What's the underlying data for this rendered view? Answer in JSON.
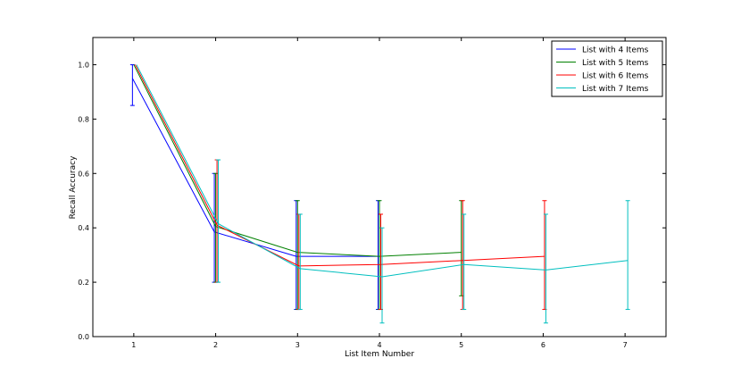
{
  "chart_data": {
    "type": "line",
    "title": "",
    "xlabel": "List Item Number",
    "ylabel": "Recall Accuracy",
    "xlim": [
      0.5,
      7.5
    ],
    "ylim": [
      0.0,
      1.1
    ],
    "xticks": [
      "1",
      "2",
      "3",
      "4",
      "5",
      "6",
      "7"
    ],
    "yticks": [
      "0.0",
      "0.2",
      "0.4",
      "0.6",
      "0.8",
      "1.0"
    ],
    "grid": false,
    "legend_position": "top-right",
    "series": [
      {
        "name": "List with 4 Items",
        "color": "#0000ff",
        "x": [
          1,
          2,
          3,
          4
        ],
        "y": [
          0.95,
          0.385,
          0.295,
          0.295
        ],
        "err_low": [
          0.85,
          0.2,
          0.1,
          0.1
        ],
        "err_high": [
          1.0,
          0.6,
          0.5,
          0.5
        ]
      },
      {
        "name": "List with 5 Items",
        "color": "#008000",
        "x": [
          1,
          2,
          3,
          4,
          5
        ],
        "y": [
          1.0,
          0.405,
          0.31,
          0.295,
          0.31
        ],
        "err_low": [
          1.0,
          0.2,
          0.1,
          0.1,
          0.15
        ],
        "err_high": [
          1.0,
          0.6,
          0.5,
          0.5,
          0.5
        ]
      },
      {
        "name": "List with 6 Items",
        "color": "#ff0000",
        "x": [
          1,
          2,
          3,
          4,
          5,
          6
        ],
        "y": [
          1.0,
          0.41,
          0.26,
          0.265,
          0.28,
          0.295
        ],
        "err_low": [
          1.0,
          0.2,
          0.1,
          0.1,
          0.1,
          0.1
        ],
        "err_high": [
          1.0,
          0.65,
          0.45,
          0.45,
          0.5,
          0.5
        ]
      },
      {
        "name": "List with 7 Items",
        "color": "#00bfbf",
        "x": [
          1,
          2,
          3,
          4,
          5,
          6,
          7
        ],
        "y": [
          1.0,
          0.415,
          0.25,
          0.22,
          0.265,
          0.245,
          0.28
        ],
        "err_low": [
          1.0,
          0.2,
          0.1,
          0.05,
          0.1,
          0.05,
          0.1
        ],
        "err_high": [
          1.0,
          0.65,
          0.45,
          0.4,
          0.45,
          0.45,
          0.5
        ]
      }
    ]
  }
}
